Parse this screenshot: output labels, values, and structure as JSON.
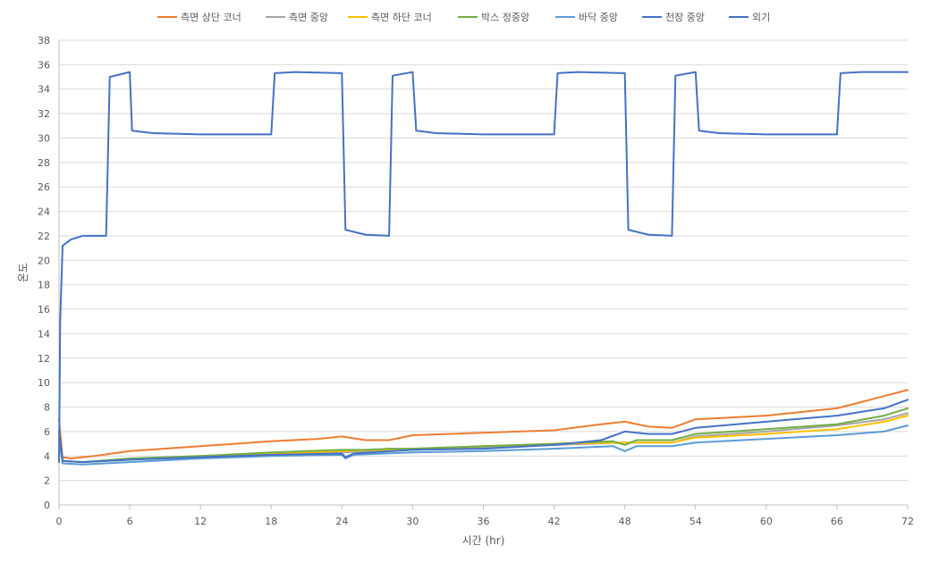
{
  "chart_data": {
    "type": "line",
    "title": "",
    "xlabel": "시간 (hr)",
    "ylabel": "온도",
    "xlim": [
      0,
      72
    ],
    "ylim": [
      0,
      38
    ],
    "x_ticks": [
      0,
      6,
      12,
      18,
      24,
      30,
      36,
      42,
      48,
      54,
      60,
      66,
      72
    ],
    "y_ticks": [
      0,
      2,
      4,
      6,
      8,
      10,
      12,
      14,
      16,
      18,
      20,
      22,
      24,
      26,
      28,
      30,
      32,
      34,
      36,
      38
    ],
    "grid": "horizontal",
    "legend_position": "top",
    "series": [
      {
        "name": "측면 상단 코너",
        "color": "#ed7d31",
        "points": [
          [
            0,
            7.0
          ],
          [
            0.3,
            3.9
          ],
          [
            1,
            3.8
          ],
          [
            3,
            4.0
          ],
          [
            6,
            4.4
          ],
          [
            12,
            4.8
          ],
          [
            18,
            5.2
          ],
          [
            22,
            5.4
          ],
          [
            24,
            5.6
          ],
          [
            26,
            5.3
          ],
          [
            28,
            5.3
          ],
          [
            30,
            5.7
          ],
          [
            36,
            5.9
          ],
          [
            42,
            6.1
          ],
          [
            46,
            6.6
          ],
          [
            48,
            6.8
          ],
          [
            50,
            6.4
          ],
          [
            52,
            6.3
          ],
          [
            54,
            7.0
          ],
          [
            60,
            7.3
          ],
          [
            66,
            7.9
          ],
          [
            68,
            8.4
          ],
          [
            70,
            8.9
          ],
          [
            72,
            9.4
          ]
        ]
      },
      {
        "name": "측면 중앙",
        "color": "#a5a5a5",
        "points": [
          [
            0,
            6.0
          ],
          [
            0.3,
            3.6
          ],
          [
            2,
            3.5
          ],
          [
            6,
            3.7
          ],
          [
            12,
            4.0
          ],
          [
            18,
            4.2
          ],
          [
            24,
            4.3
          ],
          [
            30,
            4.5
          ],
          [
            36,
            4.7
          ],
          [
            42,
            4.9
          ],
          [
            48,
            5.1
          ],
          [
            52,
            5.1
          ],
          [
            54,
            5.6
          ],
          [
            60,
            6.0
          ],
          [
            66,
            6.5
          ],
          [
            70,
            7.0
          ],
          [
            72,
            7.5
          ]
        ]
      },
      {
        "name": "측면 하단 코너",
        "color": "#ffc000",
        "points": [
          [
            0,
            6.0
          ],
          [
            0.3,
            3.6
          ],
          [
            2,
            3.5
          ],
          [
            6,
            3.7
          ],
          [
            12,
            4.0
          ],
          [
            18,
            4.2
          ],
          [
            24,
            4.4
          ],
          [
            30,
            4.6
          ],
          [
            36,
            4.8
          ],
          [
            42,
            5.0
          ],
          [
            48,
            5.1
          ],
          [
            52,
            5.1
          ],
          [
            54,
            5.5
          ],
          [
            60,
            5.8
          ],
          [
            66,
            6.2
          ],
          [
            70,
            6.8
          ],
          [
            72,
            7.3
          ]
        ]
      },
      {
        "name": "박스 정중앙",
        "color": "#70ad47",
        "points": [
          [
            0,
            6.0
          ],
          [
            0.3,
            3.6
          ],
          [
            2,
            3.5
          ],
          [
            6,
            3.8
          ],
          [
            12,
            4.0
          ],
          [
            18,
            4.3
          ],
          [
            24,
            4.5
          ],
          [
            26,
            4.5
          ],
          [
            28,
            4.6
          ],
          [
            30,
            4.6
          ],
          [
            36,
            4.8
          ],
          [
            42,
            5.0
          ],
          [
            47,
            5.2
          ],
          [
            48,
            4.9
          ],
          [
            49,
            5.3
          ],
          [
            52,
            5.3
          ],
          [
            54,
            5.8
          ],
          [
            60,
            6.2
          ],
          [
            66,
            6.6
          ],
          [
            70,
            7.3
          ],
          [
            72,
            7.9
          ]
        ]
      },
      {
        "name": "바닥 중앙",
        "color": "#5b9bd5",
        "points": [
          [
            0,
            5.5
          ],
          [
            0.3,
            3.4
          ],
          [
            2,
            3.3
          ],
          [
            6,
            3.5
          ],
          [
            12,
            3.8
          ],
          [
            18,
            4.0
          ],
          [
            24,
            4.1
          ],
          [
            24.3,
            3.8
          ],
          [
            25,
            4.1
          ],
          [
            30,
            4.3
          ],
          [
            36,
            4.4
          ],
          [
            42,
            4.6
          ],
          [
            47,
            4.8
          ],
          [
            48,
            4.4
          ],
          [
            49,
            4.8
          ],
          [
            52,
            4.8
          ],
          [
            54,
            5.1
          ],
          [
            60,
            5.4
          ],
          [
            66,
            5.7
          ],
          [
            70,
            6.0
          ],
          [
            72,
            6.5
          ]
        ]
      },
      {
        "name": "천장 중앙",
        "color": "#4472c4",
        "points": [
          [
            0,
            6.0
          ],
          [
            0.3,
            3.6
          ],
          [
            2,
            3.5
          ],
          [
            6,
            3.7
          ],
          [
            12,
            3.9
          ],
          [
            18,
            4.1
          ],
          [
            24,
            4.2
          ],
          [
            24.3,
            3.9
          ],
          [
            25,
            4.2
          ],
          [
            30,
            4.5
          ],
          [
            36,
            4.6
          ],
          [
            42,
            4.9
          ],
          [
            46,
            5.3
          ],
          [
            48,
            6.0
          ],
          [
            50,
            5.8
          ],
          [
            52,
            5.8
          ],
          [
            54,
            6.3
          ],
          [
            60,
            6.8
          ],
          [
            66,
            7.3
          ],
          [
            70,
            7.9
          ],
          [
            72,
            8.6
          ]
        ]
      },
      {
        "name": "외기",
        "color": "#4472c4",
        "points": [
          [
            0,
            3.5
          ],
          [
            0.1,
            15.0
          ],
          [
            0.3,
            21.2
          ],
          [
            1,
            21.7
          ],
          [
            2,
            22.0
          ],
          [
            4,
            22.0
          ],
          [
            4.3,
            35.0
          ],
          [
            6,
            35.4
          ],
          [
            6.2,
            30.6
          ],
          [
            8,
            30.4
          ],
          [
            12,
            30.3
          ],
          [
            18,
            30.3
          ],
          [
            18.3,
            35.3
          ],
          [
            20,
            35.4
          ],
          [
            24,
            35.3
          ],
          [
            24.3,
            22.5
          ],
          [
            26,
            22.1
          ],
          [
            28,
            22.0
          ],
          [
            28.3,
            35.1
          ],
          [
            30,
            35.4
          ],
          [
            30.3,
            30.6
          ],
          [
            32,
            30.4
          ],
          [
            36,
            30.3
          ],
          [
            42,
            30.3
          ],
          [
            42.3,
            35.3
          ],
          [
            44,
            35.4
          ],
          [
            48,
            35.3
          ],
          [
            48.3,
            22.5
          ],
          [
            50,
            22.1
          ],
          [
            52,
            22.0
          ],
          [
            52.3,
            35.1
          ],
          [
            54,
            35.4
          ],
          [
            54.3,
            30.6
          ],
          [
            56,
            30.4
          ],
          [
            60,
            30.3
          ],
          [
            66,
            30.3
          ],
          [
            66.3,
            35.3
          ],
          [
            68,
            35.4
          ],
          [
            72,
            35.4
          ]
        ]
      }
    ]
  }
}
